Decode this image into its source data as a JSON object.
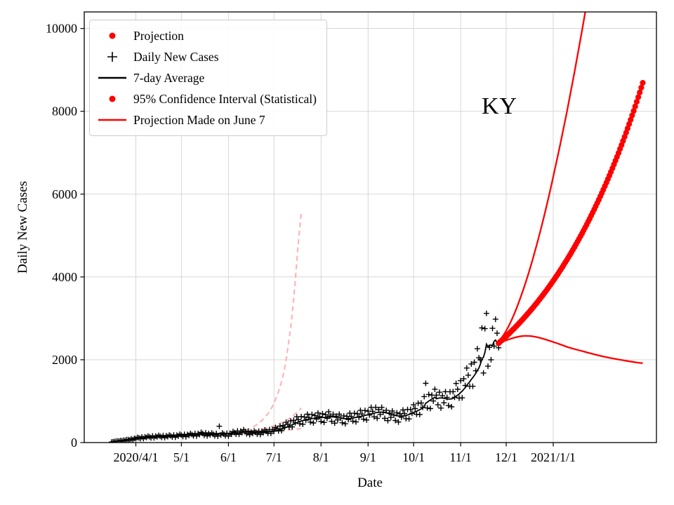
{
  "chart_data": {
    "type": "scatter",
    "title": "KY",
    "annotation": "KY",
    "xlabel": "Date",
    "ylabel": "Daily New Cases",
    "grid": true,
    "legend_position": "upper left",
    "colors": {
      "projection": "#ff0000",
      "daily": "#000000",
      "average": "#000000",
      "june7_faded": "#ffb3b3",
      "grid": "#d2d2d2"
    },
    "x_axis": {
      "day0_date": "2020-03-01",
      "min_day": -3,
      "max_day": 374,
      "ticks": [
        {
          "day": 31,
          "label": "2020/4/1"
        },
        {
          "day": 61,
          "label": "5/1"
        },
        {
          "day": 92,
          "label": "6/1"
        },
        {
          "day": 122,
          "label": "7/1"
        },
        {
          "day": 153,
          "label": "8/1"
        },
        {
          "day": 184,
          "label": "9/1"
        },
        {
          "day": 214,
          "label": "10/1"
        },
        {
          "day": 245,
          "label": "11/1"
        },
        {
          "day": 275,
          "label": "12/1"
        },
        {
          "day": 306,
          "label": "2021/1/1"
        }
      ]
    },
    "y_axis": {
      "min": 0,
      "max": 10400,
      "ticks": [
        {
          "value": 0,
          "label": "0"
        },
        {
          "value": 2000,
          "label": "2000"
        },
        {
          "value": 4000,
          "label": "4000"
        },
        {
          "value": 6000,
          "label": "6000"
        },
        {
          "value": 8000,
          "label": "8000"
        },
        {
          "value": 10000,
          "label": "10000"
        }
      ]
    },
    "legend": {
      "entries": [
        {
          "label": "Projection",
          "marker": "dot",
          "color": "#ff0000"
        },
        {
          "label": "Daily New Cases",
          "marker": "plus",
          "color": "#000000"
        },
        {
          "label": "7-day Average",
          "marker": "line",
          "color": "#000000"
        },
        {
          "label": "95% Confidence Interval (Statistical)",
          "marker": "dot",
          "color": "#ff0000"
        },
        {
          "label": "Projection Made on June 7",
          "marker": "line",
          "color": "#ff0000"
        }
      ]
    },
    "series": {
      "daily_new_cases": {
        "marker": "plus",
        "start_day": 15,
        "values": [
          12,
          22,
          24,
          36,
          37,
          34,
          51,
          38,
          57,
          53,
          72,
          70,
          62,
          92,
          70,
          102,
          95,
          125,
          114,
          96,
          135,
          97,
          139,
          124,
          158,
          141,
          116,
          160,
          113,
          157,
          138,
          175,
          153,
          125,
          170,
          119,
          164,
          143,
          182,
          162,
          133,
          183,
          129,
          179,
          158,
          202,
          179,
          146,
          200,
          141,
          197,
          172,
          220,
          194,
          161,
          221,
          157,
          219,
          193,
          247,
          221,
          176,
          235,
          161,
          219,
          186,
          232,
          200,
          162,
          220,
          154,
          394,
          183,
          232,
          204,
          165,
          224,
          156,
          224,
          202,
          266,
          243,
          204,
          281,
          198,
          277,
          243,
          312,
          267,
          211,
          278,
          189,
          253,
          220,
          281,
          248,
          202,
          276,
          195,
          273,
          239,
          307,
          273,
          226,
          313,
          222,
          312,
          276,
          365,
          334,
          282,
          398,
          288,
          414,
          372,
          490,
          445,
          374,
          524,
          378,
          537,
          479,
          624,
          554,
          456,
          626,
          442,
          616,
          538,
          686,
          607,
          496,
          679,
          474,
          652,
          565,
          716,
          628,
          510,
          695,
          486,
          673,
          585,
          744,
          643,
          513,
          685,
          470,
          638,
          547,
          686,
          596,
          479,
          644,
          454,
          634,
          555,
          710,
          630,
          517,
          708,
          499,
          695,
          608,
          778,
          690,
          565,
          774,
          546,
          759,
          665,
          852,
          756,
          621,
          851,
          586,
          796,
          680,
          850,
          735,
          585,
          777,
          531,
          717,
          608,
          763,
          664,
          534,
          718,
          496,
          695,
          612,
          787,
          701,
          578,
          800,
          570,
          801,
          707,
          912,
          821,
          683,
          950,
          678,
          957,
          853,
          1111,
          1431,
          835,
          1162,
          821,
          1146,
          1005,
          1289,
          1145,
          913,
          1217,
          834,
          1129,
          960,
          1229,
          1090,
          894,
          1226,
          864,
          1229,
          1095,
          1428,
          1288,
          1074,
          1495,
          1080,
          1540,
          1378,
          1800,
          1628,
          1360,
          1898,
          1360,
          1939,
          1734,
          2266,
          2048,
          2000,
          2770,
          1680,
          2750,
          3120,
          1845,
          2300,
          2000,
          2760,
          2330,
          2980,
          2640,
          2290
        ]
      },
      "seven_day_average": {
        "derived_from": "daily_new_cases",
        "window": 7
      },
      "projection": {
        "marker": "dot",
        "start_day": 270,
        "values": [
          2400,
          2433,
          2466,
          2499,
          2533,
          2568,
          2603,
          2638,
          2674,
          2711,
          2748,
          2785,
          2823,
          2861,
          2900,
          2940,
          2980,
          3021,
          3062,
          3104,
          3146,
          3189,
          3232,
          3276,
          3321,
          3366,
          3412,
          3459,
          3506,
          3554,
          3602,
          3651,
          3701,
          3751,
          3803,
          3854,
          3907,
          3960,
          4014,
          4069,
          4124,
          4181,
          4238,
          4295,
          4354,
          4413,
          4474,
          4535,
          4596,
          4659,
          4723,
          4787,
          4852,
          4918,
          4985,
          5053,
          5122,
          5192,
          5263,
          5335,
          5407,
          5481,
          5556,
          5632,
          5708,
          5786,
          5865,
          5945,
          6026,
          6108,
          6192,
          6276,
          6362,
          6448,
          6536,
          6626,
          6716,
          6808,
          6900,
          6994,
          7090,
          7187,
          7285,
          7384,
          7485,
          7587,
          7690,
          7795,
          7902,
          8010,
          8119,
          8230,
          8342,
          8456,
          8571,
          8688
        ]
      },
      "ci_upper": {
        "points": [
          [
            270,
            2430
          ],
          [
            275,
            2700
          ],
          [
            280,
            3080
          ],
          [
            285,
            3560
          ],
          [
            290,
            4120
          ],
          [
            295,
            4760
          ],
          [
            300,
            5470
          ],
          [
            305,
            6250
          ],
          [
            310,
            7090
          ],
          [
            315,
            7990
          ],
          [
            320,
            8950
          ],
          [
            325,
            9960
          ],
          [
            330,
            11020
          ]
        ]
      },
      "ci_lower": {
        "points": [
          [
            270,
            2390
          ],
          [
            275,
            2470
          ],
          [
            280,
            2530
          ],
          [
            285,
            2570
          ],
          [
            290,
            2575
          ],
          [
            295,
            2550
          ],
          [
            300,
            2500
          ],
          [
            305,
            2440
          ],
          [
            310,
            2380
          ],
          [
            316,
            2300
          ],
          [
            322,
            2240
          ],
          [
            330,
            2160
          ],
          [
            340,
            2070
          ],
          [
            350,
            2000
          ],
          [
            360,
            1940
          ],
          [
            365,
            1915
          ]
        ]
      },
      "june7_projection_upper": {
        "style": "dashed-faded",
        "points": [
          [
            98,
            240
          ],
          [
            103,
            290
          ],
          [
            108,
            370
          ],
          [
            113,
            500
          ],
          [
            118,
            700
          ],
          [
            122,
            950
          ],
          [
            126,
            1350
          ],
          [
            129,
            1800
          ],
          [
            132,
            2500
          ],
          [
            134,
            3100
          ],
          [
            136,
            3900
          ],
          [
            138,
            4800
          ],
          [
            140,
            5550
          ]
        ]
      },
      "june7_projection_central": {
        "style": "dashed-faded",
        "points": [
          [
            98,
            235
          ],
          [
            104,
            260
          ],
          [
            110,
            295
          ],
          [
            116,
            340
          ],
          [
            122,
            405
          ],
          [
            128,
            495
          ],
          [
            133,
            605
          ],
          [
            137,
            725
          ],
          [
            140,
            835
          ]
        ]
      },
      "june7_projection_lower": {
        "style": "dashed-faded",
        "points": [
          [
            98,
            230
          ],
          [
            106,
            238
          ],
          [
            114,
            252
          ],
          [
            122,
            272
          ],
          [
            130,
            298
          ],
          [
            136,
            322
          ],
          [
            140,
            340
          ]
        ]
      }
    }
  }
}
